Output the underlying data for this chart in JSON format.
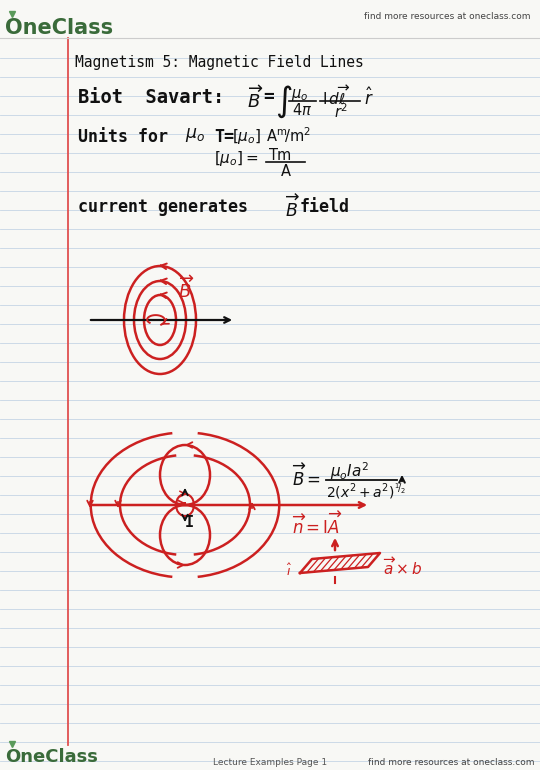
{
  "bg_color": "#f8f8f5",
  "line_color_ruled": "#c5d5e5",
  "red_margin": "#e05050",
  "ink_color": "#111111",
  "red_ink": "#cc2020",
  "oneclass_green": "#3a6b3a",
  "header_text": "find more resources at oneclass.com",
  "footer_text": "find more resources at oneclass.com",
  "footer_left": "Lecture Examples Page 1",
  "title": "Magnetism 5: Magnetic Field Lines"
}
